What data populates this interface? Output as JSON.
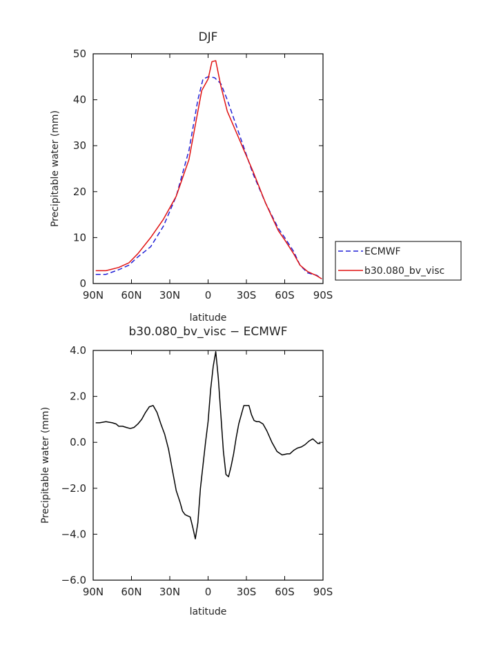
{
  "chart_data": [
    {
      "type": "line",
      "title": "DJF",
      "xlabel": "latitude",
      "ylabel": "Precipitable water (mm)",
      "xlim": [
        -90,
        90
      ],
      "ylim": [
        0,
        50
      ],
      "x_ticks": [
        -90,
        -60,
        -30,
        0,
        30,
        60,
        90
      ],
      "x_tick_labels": [
        "90N",
        "60N",
        "30N",
        "0",
        "30S",
        "60S",
        "90S"
      ],
      "y_ticks": [
        0,
        10,
        20,
        30,
        40,
        50
      ],
      "y_tick_labels": [
        "0",
        "10",
        "20",
        "30",
        "40",
        "50"
      ],
      "legend_position": "right",
      "series": [
        {
          "name": "ECMWF",
          "color": "#1f1fd6",
          "dash": "dashed",
          "x": [
            -88,
            -80,
            -70,
            -62,
            -55,
            -45,
            -35,
            -25,
            -15,
            -8,
            -4,
            0,
            5,
            10,
            15,
            25,
            35,
            45,
            55,
            60,
            67,
            72,
            78,
            85,
            89
          ],
          "y": [
            2.0,
            2.0,
            3.0,
            4.0,
            5.8,
            8.0,
            12.5,
            19.0,
            29.0,
            40.0,
            44.5,
            45.0,
            44.8,
            43.5,
            40.0,
            32.0,
            24.0,
            17.5,
            12.0,
            10.0,
            7.0,
            4.0,
            2.3,
            1.8,
            1.0
          ]
        },
        {
          "name": "b30.080_bv_visc",
          "color": "#e01010",
          "dash": "solid",
          "x": [
            -88,
            -80,
            -70,
            -62,
            -55,
            -45,
            -35,
            -25,
            -15,
            -8,
            -5,
            0,
            3,
            6,
            10,
            15,
            25,
            35,
            45,
            55,
            60,
            67,
            72,
            78,
            85,
            89
          ],
          "y": [
            2.8,
            2.8,
            3.5,
            4.5,
            6.5,
            10.0,
            14.0,
            19.0,
            27.0,
            37.5,
            42.0,
            44.5,
            48.3,
            48.5,
            43.0,
            37.5,
            31.0,
            24.5,
            17.5,
            11.5,
            9.5,
            6.5,
            4.0,
            2.6,
            1.7,
            1.0
          ]
        }
      ]
    },
    {
      "type": "line",
      "title": "b30.080_bv_visc − ECMWF",
      "xlabel": "latitude",
      "ylabel": "Precipitable water (mm)",
      "xlim": [
        -90,
        90
      ],
      "ylim": [
        -6,
        4
      ],
      "x_ticks": [
        -90,
        -60,
        -30,
        0,
        30,
        60,
        90
      ],
      "x_tick_labels": [
        "90N",
        "60N",
        "30N",
        "0",
        "30S",
        "60S",
        "90S"
      ],
      "y_ticks": [
        -6,
        -4,
        -2,
        0,
        2,
        4
      ],
      "y_tick_labels": [
        "−6.0",
        "−4.0",
        "−2.0",
        "0.0",
        "2.0",
        "4.0"
      ],
      "series": [
        {
          "color": "#000000",
          "x": [
            -88,
            -85,
            -80,
            -75,
            -72,
            -70,
            -67,
            -64,
            -61,
            -58,
            -55,
            -52,
            -49,
            -46,
            -43,
            -40,
            -37,
            -34,
            -31,
            -28,
            -25,
            -22,
            -20,
            -18,
            -16,
            -14,
            -12,
            -10,
            -8,
            -6,
            -4,
            -2,
            0,
            2,
            4,
            6,
            8,
            10,
            12,
            14,
            16,
            18,
            20,
            22,
            24,
            26,
            28,
            30,
            32,
            34,
            36,
            38,
            40,
            43,
            46,
            50,
            54,
            58,
            62,
            64,
            67,
            70,
            73,
            76,
            79,
            82,
            84,
            86,
            88
          ],
          "y": [
            0.85,
            0.85,
            0.9,
            0.85,
            0.8,
            0.7,
            0.7,
            0.65,
            0.6,
            0.65,
            0.8,
            1.0,
            1.3,
            1.55,
            1.6,
            1.3,
            0.8,
            0.35,
            -0.3,
            -1.2,
            -2.1,
            -2.6,
            -3.0,
            -3.15,
            -3.2,
            -3.25,
            -3.7,
            -4.2,
            -3.5,
            -2.0,
            -1.0,
            0.0,
            0.9,
            2.3,
            3.3,
            3.95,
            2.8,
            1.2,
            -0.4,
            -1.4,
            -1.5,
            -1.05,
            -0.5,
            0.2,
            0.8,
            1.2,
            1.6,
            1.6,
            1.6,
            1.2,
            0.95,
            0.9,
            0.9,
            0.8,
            0.5,
            0.0,
            -0.4,
            -0.55,
            -0.5,
            -0.5,
            -0.35,
            -0.25,
            -0.2,
            -0.1,
            0.05,
            0.15,
            0.05,
            -0.05,
            -0.05
          ]
        }
      ]
    }
  ]
}
